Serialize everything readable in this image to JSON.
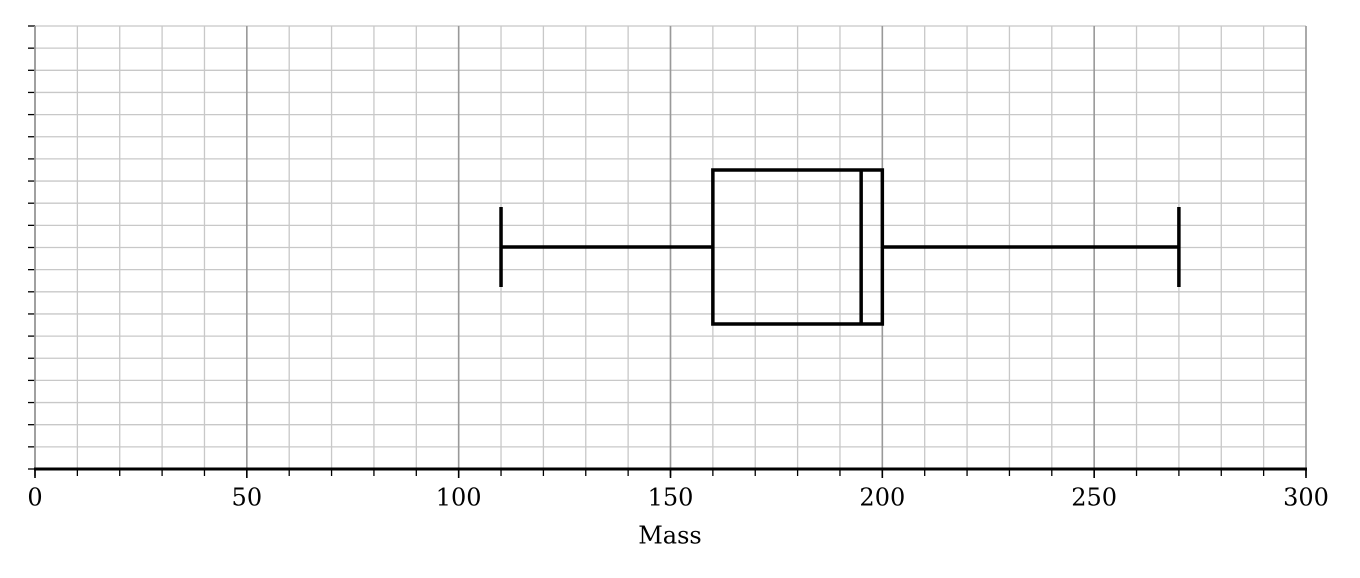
{
  "chart_data": {
    "type": "box",
    "xlabel": "Mass",
    "xlim": [
      0,
      300
    ],
    "xticks": [
      0,
      50,
      100,
      150,
      200,
      250,
      300
    ],
    "minor_xticks": [
      0,
      10,
      20,
      30,
      40,
      50,
      60,
      70,
      80,
      90,
      100,
      110,
      120,
      130,
      140,
      150,
      160,
      170,
      180,
      190,
      200,
      210,
      220,
      230,
      240,
      250,
      260,
      270,
      280,
      290,
      300
    ],
    "grid": true,
    "color": "#000000",
    "boxes": [
      {
        "min": 110,
        "q1": 160,
        "median": 195,
        "q3": 200,
        "max": 270
      }
    ]
  }
}
